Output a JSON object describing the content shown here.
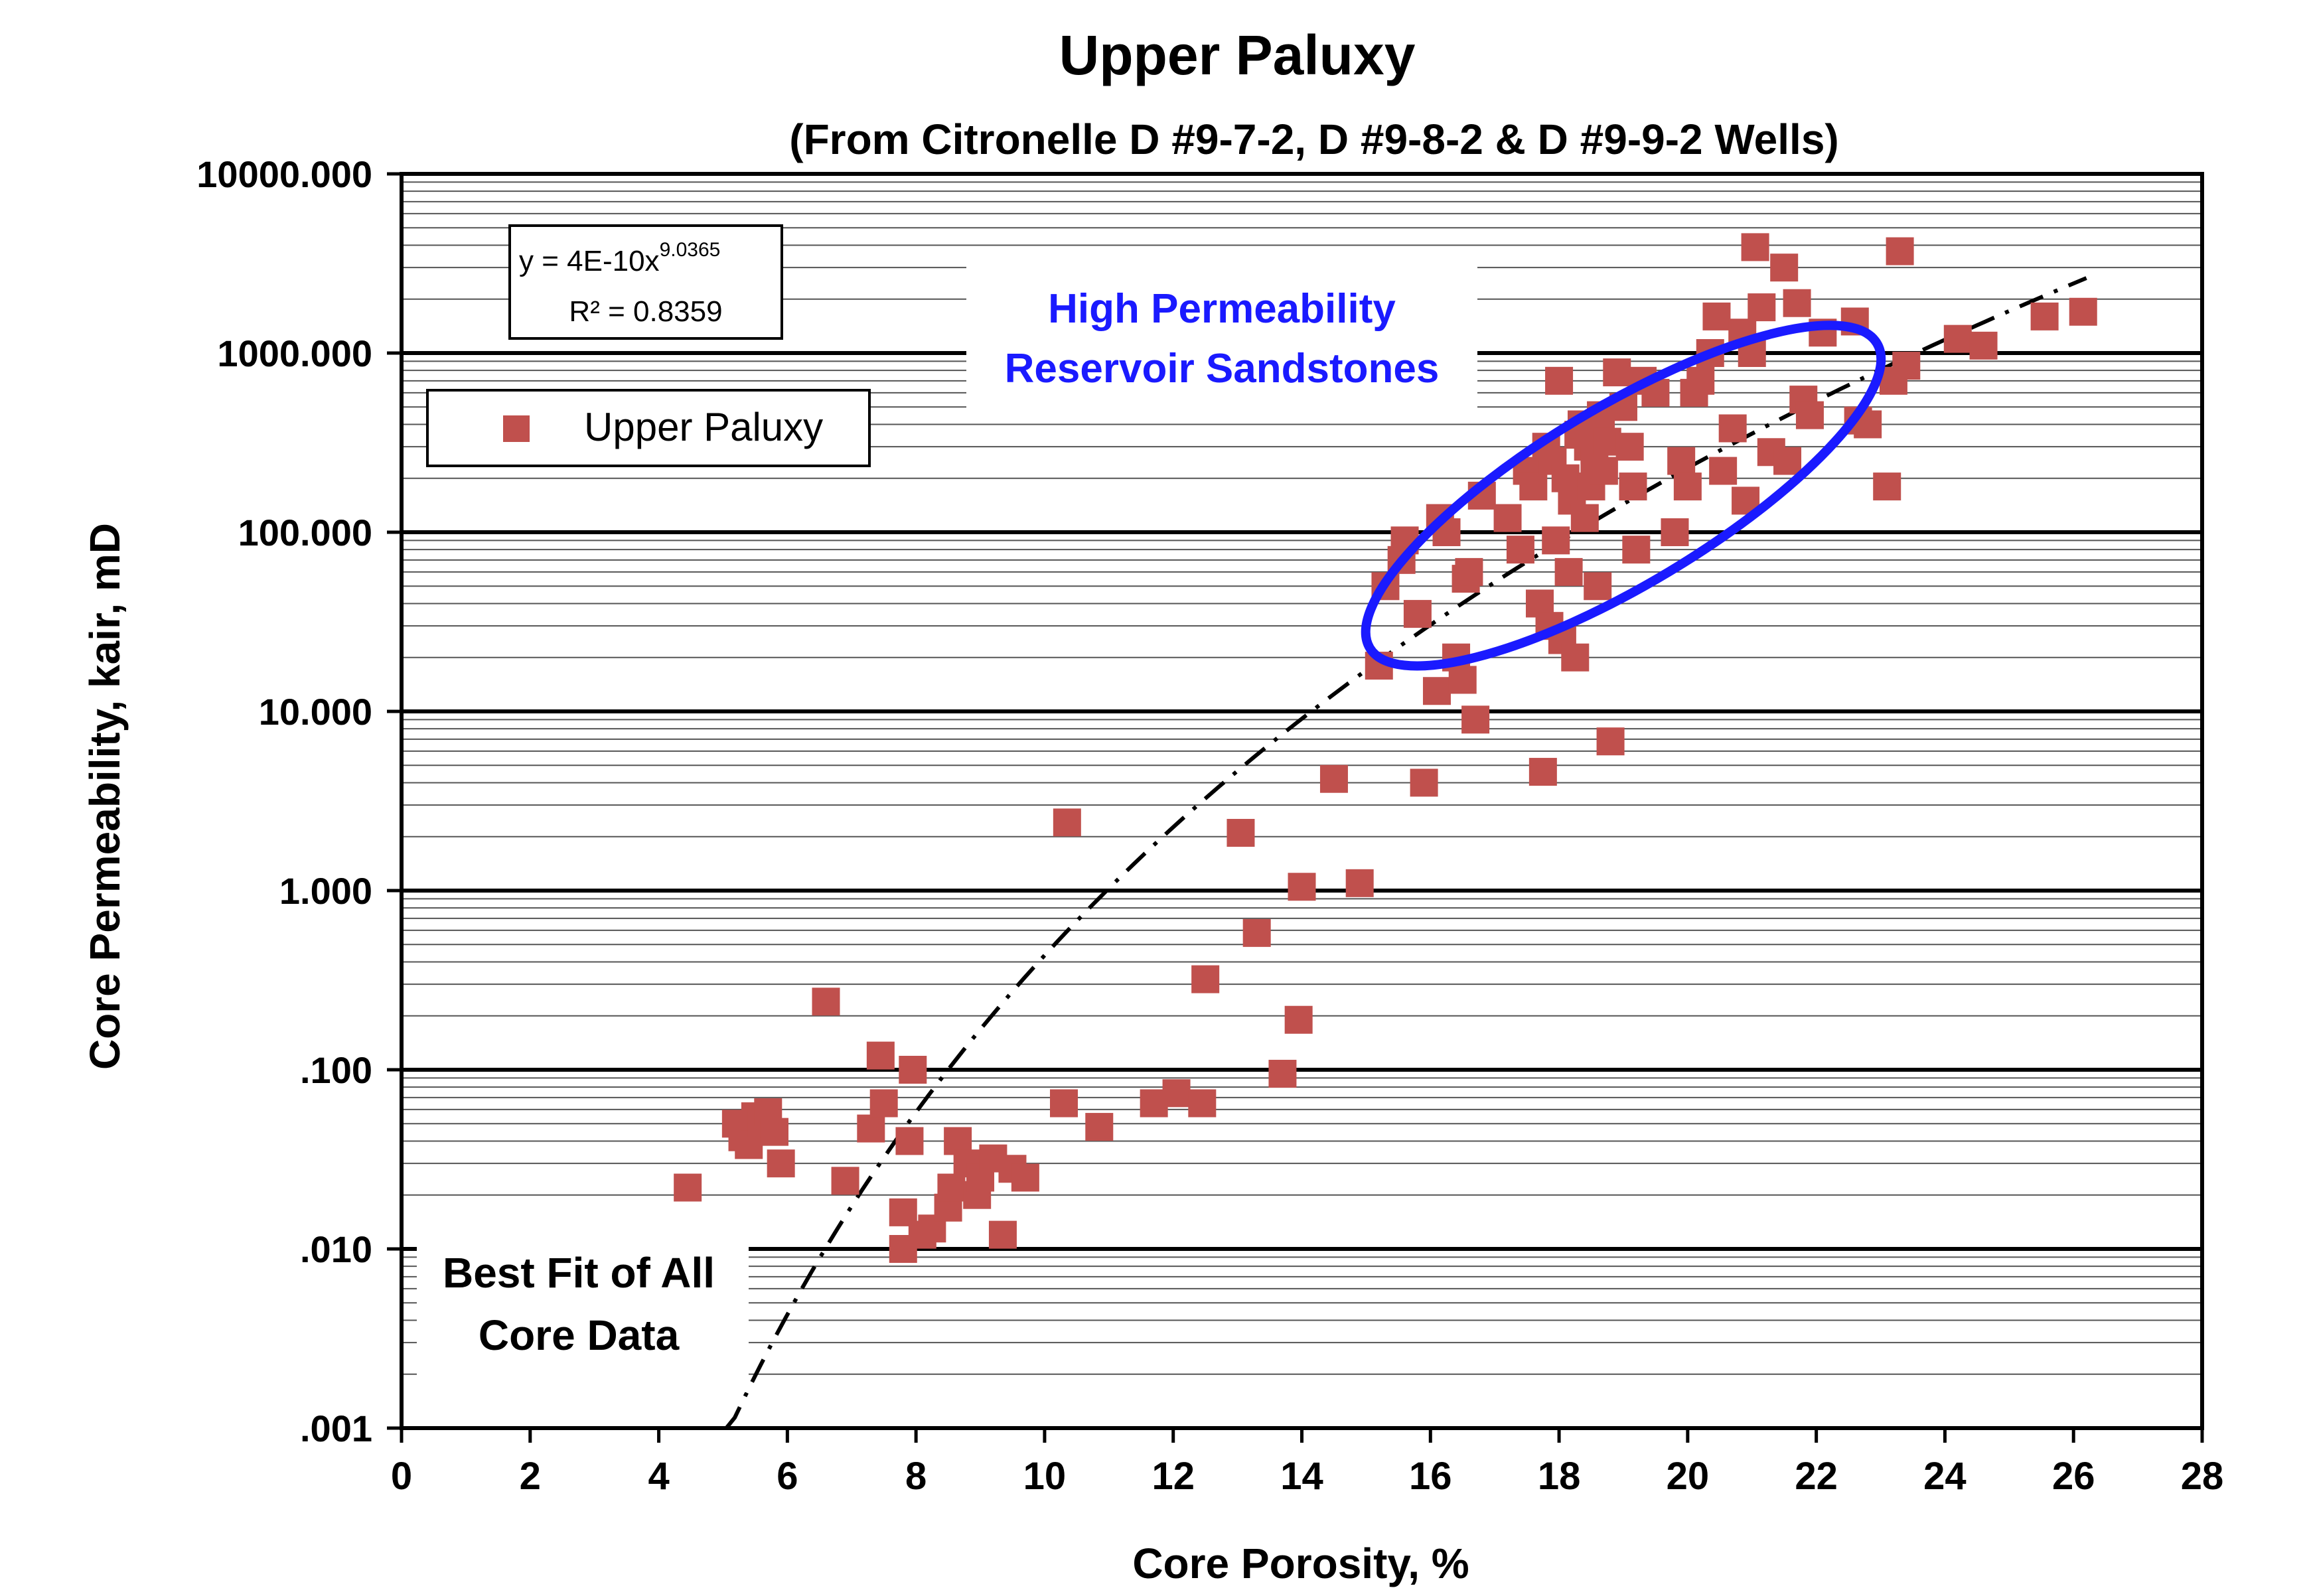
{
  "chart_data": {
    "type": "scatter",
    "title": "Upper Paluxy",
    "subtitle": "(From Citronelle D #9-7-2,  D #9-8-2 &  D #9-9-2 Wells)",
    "xlabel": "Core Porosity, %",
    "ylabel": "Core Permeability, kair, mD",
    "xlim": [
      0,
      28
    ],
    "ylim": [
      0.001,
      10000
    ],
    "yscale": "log",
    "x_ticks": [
      0,
      2,
      4,
      6,
      8,
      10,
      12,
      14,
      16,
      18,
      20,
      22,
      24,
      26,
      28
    ],
    "x_tick_labels": [
      "0",
      "2",
      "4",
      "6",
      "8",
      "10",
      "12",
      "14",
      "16",
      "18",
      "20",
      "22",
      "24",
      "26",
      "28"
    ],
    "y_ticks": [
      0.001,
      0.01,
      0.1,
      1,
      10,
      100,
      1000,
      10000
    ],
    "y_tick_labels": [
      ".001",
      ".010",
      ".100",
      "1.000",
      "10.000",
      "100.000",
      "1000.000",
      "10000.000"
    ],
    "grid": "horizontal minor and major",
    "legend_position": "top-left",
    "series": [
      {
        "name": "Upper Paluxy",
        "color": "#c0504d",
        "marker": "square",
        "points": [
          [
            4.45,
            0.022
          ],
          [
            5.2,
            0.05
          ],
          [
            5.3,
            0.042
          ],
          [
            5.4,
            0.038
          ],
          [
            5.5,
            0.055
          ],
          [
            5.6,
            0.05
          ],
          [
            5.7,
            0.058
          ],
          [
            5.8,
            0.045
          ],
          [
            5.9,
            0.03
          ],
          [
            6.6,
            0.24
          ],
          [
            6.9,
            0.024
          ],
          [
            7.3,
            0.047
          ],
          [
            7.45,
            0.12
          ],
          [
            7.5,
            0.065
          ],
          [
            7.8,
            0.016
          ],
          [
            7.8,
            0.01
          ],
          [
            7.9,
            0.04
          ],
          [
            7.95,
            0.1
          ],
          [
            8.1,
            0.012
          ],
          [
            8.25,
            0.013
          ],
          [
            8.5,
            0.017
          ],
          [
            8.55,
            0.022
          ],
          [
            8.65,
            0.04
          ],
          [
            8.8,
            0.03
          ],
          [
            8.95,
            0.02
          ],
          [
            9.0,
            0.025
          ],
          [
            9.2,
            0.032
          ],
          [
            9.35,
            0.012
          ],
          [
            9.5,
            0.028
          ],
          [
            9.7,
            0.025
          ],
          [
            10.3,
            0.065
          ],
          [
            10.35,
            2.4
          ],
          [
            10.85,
            0.048
          ],
          [
            11.7,
            0.065
          ],
          [
            12.05,
            0.074
          ],
          [
            12.45,
            0.065
          ],
          [
            12.5,
            0.32
          ],
          [
            13.05,
            2.1
          ],
          [
            13.3,
            0.58
          ],
          [
            13.7,
            0.095
          ],
          [
            13.95,
            0.19
          ],
          [
            14.0,
            1.05
          ],
          [
            14.5,
            4.2
          ],
          [
            14.9,
            1.1
          ],
          [
            15.2,
            18
          ],
          [
            15.3,
            50
          ],
          [
            15.55,
            70
          ],
          [
            15.6,
            90
          ],
          [
            15.8,
            35
          ],
          [
            15.9,
            4.0
          ],
          [
            16.1,
            13
          ],
          [
            16.15,
            120
          ],
          [
            16.25,
            100
          ],
          [
            16.4,
            20
          ],
          [
            16.5,
            15
          ],
          [
            16.55,
            55
          ],
          [
            16.6,
            60
          ],
          [
            16.7,
            9.0
          ],
          [
            16.8,
            160
          ],
          [
            17.2,
            120
          ],
          [
            17.4,
            80
          ],
          [
            17.5,
            220
          ],
          [
            17.6,
            180
          ],
          [
            17.7,
            40
          ],
          [
            17.75,
            4.6
          ],
          [
            17.8,
            300
          ],
          [
            17.85,
            30
          ],
          [
            17.9,
            250
          ],
          [
            17.95,
            90
          ],
          [
            18.0,
            700
          ],
          [
            18.05,
            25
          ],
          [
            18.1,
            200
          ],
          [
            18.15,
            60
          ],
          [
            18.2,
            150
          ],
          [
            18.25,
            20
          ],
          [
            18.3,
            350
          ],
          [
            18.35,
            400
          ],
          [
            18.4,
            120
          ],
          [
            18.45,
            300
          ],
          [
            18.5,
            180
          ],
          [
            18.55,
            250
          ],
          [
            18.6,
            50
          ],
          [
            18.65,
            450
          ],
          [
            18.7,
            220
          ],
          [
            18.75,
            320
          ],
          [
            18.8,
            6.8
          ],
          [
            18.9,
            780
          ],
          [
            19.0,
            500
          ],
          [
            19.1,
            300
          ],
          [
            19.15,
            180
          ],
          [
            19.2,
            80
          ],
          [
            19.3,
            700
          ],
          [
            19.5,
            600
          ],
          [
            19.8,
            100
          ],
          [
            19.9,
            250
          ],
          [
            20.0,
            180
          ],
          [
            20.1,
            600
          ],
          [
            20.2,
            700
          ],
          [
            20.35,
            1000
          ],
          [
            20.45,
            1600
          ],
          [
            20.55,
            220
          ],
          [
            20.7,
            380
          ],
          [
            20.85,
            1300
          ],
          [
            20.9,
            150
          ],
          [
            21.0,
            1000
          ],
          [
            21.05,
            3900
          ],
          [
            21.15,
            1800
          ],
          [
            21.3,
            280
          ],
          [
            21.5,
            3000
          ],
          [
            21.55,
            250
          ],
          [
            21.7,
            1900
          ],
          [
            21.8,
            550
          ],
          [
            21.9,
            450
          ],
          [
            22.1,
            1300
          ],
          [
            22.6,
            1500
          ],
          [
            22.65,
            420
          ],
          [
            22.8,
            400
          ],
          [
            23.1,
            180
          ],
          [
            23.2,
            700
          ],
          [
            23.3,
            3700
          ],
          [
            23.4,
            850
          ],
          [
            24.2,
            1200
          ],
          [
            24.6,
            1100
          ],
          [
            25.55,
            1600
          ],
          [
            26.15,
            1700
          ]
        ]
      }
    ],
    "trendline": {
      "name": "Best Fit of All Core Data",
      "equation": "y = 4E-10x",
      "exponent": "9.0365",
      "r2": "R² = 0.8359",
      "a": 4e-10,
      "b": 9.0365,
      "x_range": [
        5.05,
        26.2
      ],
      "style": "dash-dot",
      "color": "#000000"
    },
    "annotations": {
      "high_perm_line1": "High Permeability",
      "high_perm_line2": "Reservoir Sandstones",
      "best_fit_line1": "Best Fit of All",
      "best_fit_line2": "Core Data",
      "ellipse_color": "#1a1aff",
      "ellipse_center": [
        19.0,
        160
      ],
      "ellipse_rx_pct": 4.6,
      "ellipse_angle_deg": -31
    }
  }
}
